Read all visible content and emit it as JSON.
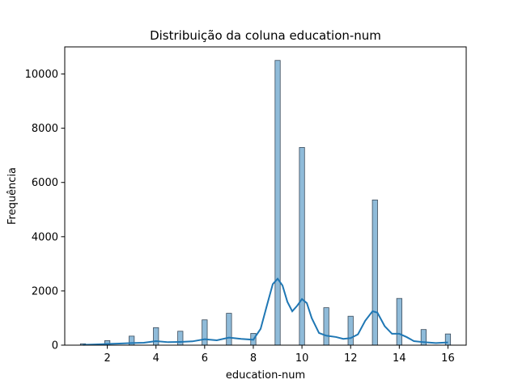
{
  "chart_data": {
    "type": "bar",
    "title": "Distribuição da coluna education-num",
    "xlabel": "education-num",
    "ylabel": "Frequência",
    "xlim": [
      0.25,
      16.75
    ],
    "ylim": [
      0,
      11000
    ],
    "xticks": [
      2,
      4,
      6,
      8,
      10,
      12,
      14,
      16
    ],
    "yticks": [
      0,
      2000,
      4000,
      6000,
      8000,
      10000
    ],
    "grid": false,
    "bar_color": "#1f77b4",
    "bar_edge_color": "#3a4a5a",
    "kde_color": "#1f77b4",
    "bars": [
      {
        "x": 1,
        "value": 51
      },
      {
        "x": 2,
        "value": 168
      },
      {
        "x": 3,
        "value": 333
      },
      {
        "x": 4,
        "value": 646
      },
      {
        "x": 5,
        "value": 514
      },
      {
        "x": 6,
        "value": 933
      },
      {
        "x": 7,
        "value": 1175
      },
      {
        "x": 8,
        "value": 433
      },
      {
        "x": 9,
        "value": 10501
      },
      {
        "x": 10,
        "value": 7291
      },
      {
        "x": 11,
        "value": 1382
      },
      {
        "x": 12,
        "value": 1067
      },
      {
        "x": 13,
        "value": 5355
      },
      {
        "x": 14,
        "value": 1723
      },
      {
        "x": 15,
        "value": 576
      },
      {
        "x": 16,
        "value": 413
      }
    ],
    "kde": [
      {
        "x": 1.0,
        "y": 10
      },
      {
        "x": 1.5,
        "y": 25
      },
      {
        "x": 2.0,
        "y": 45
      },
      {
        "x": 2.5,
        "y": 60
      },
      {
        "x": 3.0,
        "y": 80
      },
      {
        "x": 3.5,
        "y": 90
      },
      {
        "x": 4.0,
        "y": 150
      },
      {
        "x": 4.5,
        "y": 110
      },
      {
        "x": 5.0,
        "y": 120
      },
      {
        "x": 5.5,
        "y": 140
      },
      {
        "x": 6.0,
        "y": 220
      },
      {
        "x": 6.5,
        "y": 180
      },
      {
        "x": 7.0,
        "y": 280
      },
      {
        "x": 7.5,
        "y": 230
      },
      {
        "x": 8.0,
        "y": 200
      },
      {
        "x": 8.3,
        "y": 600
      },
      {
        "x": 8.6,
        "y": 1600
      },
      {
        "x": 8.8,
        "y": 2250
      },
      {
        "x": 9.0,
        "y": 2450
      },
      {
        "x": 9.2,
        "y": 2200
      },
      {
        "x": 9.4,
        "y": 1600
      },
      {
        "x": 9.6,
        "y": 1250
      },
      {
        "x": 9.8,
        "y": 1450
      },
      {
        "x": 10.0,
        "y": 1700
      },
      {
        "x": 10.2,
        "y": 1550
      },
      {
        "x": 10.4,
        "y": 1000
      },
      {
        "x": 10.7,
        "y": 450
      },
      {
        "x": 11.0,
        "y": 350
      },
      {
        "x": 11.4,
        "y": 300
      },
      {
        "x": 11.7,
        "y": 230
      },
      {
        "x": 12.0,
        "y": 260
      },
      {
        "x": 12.3,
        "y": 400
      },
      {
        "x": 12.6,
        "y": 900
      },
      {
        "x": 12.9,
        "y": 1250
      },
      {
        "x": 13.1,
        "y": 1200
      },
      {
        "x": 13.4,
        "y": 700
      },
      {
        "x": 13.7,
        "y": 420
      },
      {
        "x": 14.0,
        "y": 420
      },
      {
        "x": 14.3,
        "y": 300
      },
      {
        "x": 14.6,
        "y": 150
      },
      {
        "x": 15.0,
        "y": 110
      },
      {
        "x": 15.5,
        "y": 80
      },
      {
        "x": 16.0,
        "y": 100
      }
    ]
  }
}
